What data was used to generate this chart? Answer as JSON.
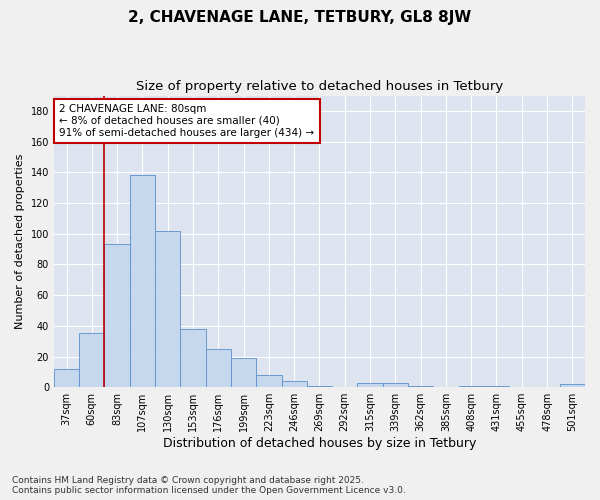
{
  "title": "2, CHAVENAGE LANE, TETBURY, GL8 8JW",
  "subtitle": "Size of property relative to detached houses in Tetbury",
  "xlabel": "Distribution of detached houses by size in Tetbury",
  "ylabel": "Number of detached properties",
  "categories": [
    "37sqm",
    "60sqm",
    "83sqm",
    "107sqm",
    "130sqm",
    "153sqm",
    "176sqm",
    "199sqm",
    "223sqm",
    "246sqm",
    "269sqm",
    "292sqm",
    "315sqm",
    "339sqm",
    "362sqm",
    "385sqm",
    "408sqm",
    "431sqm",
    "455sqm",
    "478sqm",
    "501sqm"
  ],
  "values": [
    12,
    35,
    93,
    138,
    102,
    38,
    25,
    19,
    8,
    4,
    1,
    0,
    3,
    3,
    1,
    0,
    1,
    1,
    0,
    0,
    2
  ],
  "bar_color": "#c5d8ee",
  "bar_edge_color": "#5b8fc9",
  "highlight_color": "#c00000",
  "annotation_text": "2 CHAVENAGE LANE: 80sqm\n← 8% of detached houses are smaller (40)\n91% of semi-detached houses are larger (434) →",
  "annotation_box_color": "#ffffff",
  "annotation_box_edge": "#c00000",
  "ylim": [
    0,
    190
  ],
  "yticks": [
    0,
    20,
    40,
    60,
    80,
    100,
    120,
    140,
    160,
    180
  ],
  "background_color": "#dde4f0",
  "grid_color": "#ffffff",
  "fig_background": "#f0f0f0",
  "footer": "Contains HM Land Registry data © Crown copyright and database right 2025.\nContains public sector information licensed under the Open Government Licence v3.0.",
  "title_fontsize": 11,
  "subtitle_fontsize": 9.5,
  "xlabel_fontsize": 9,
  "ylabel_fontsize": 8,
  "tick_fontsize": 7,
  "footer_fontsize": 6.5
}
